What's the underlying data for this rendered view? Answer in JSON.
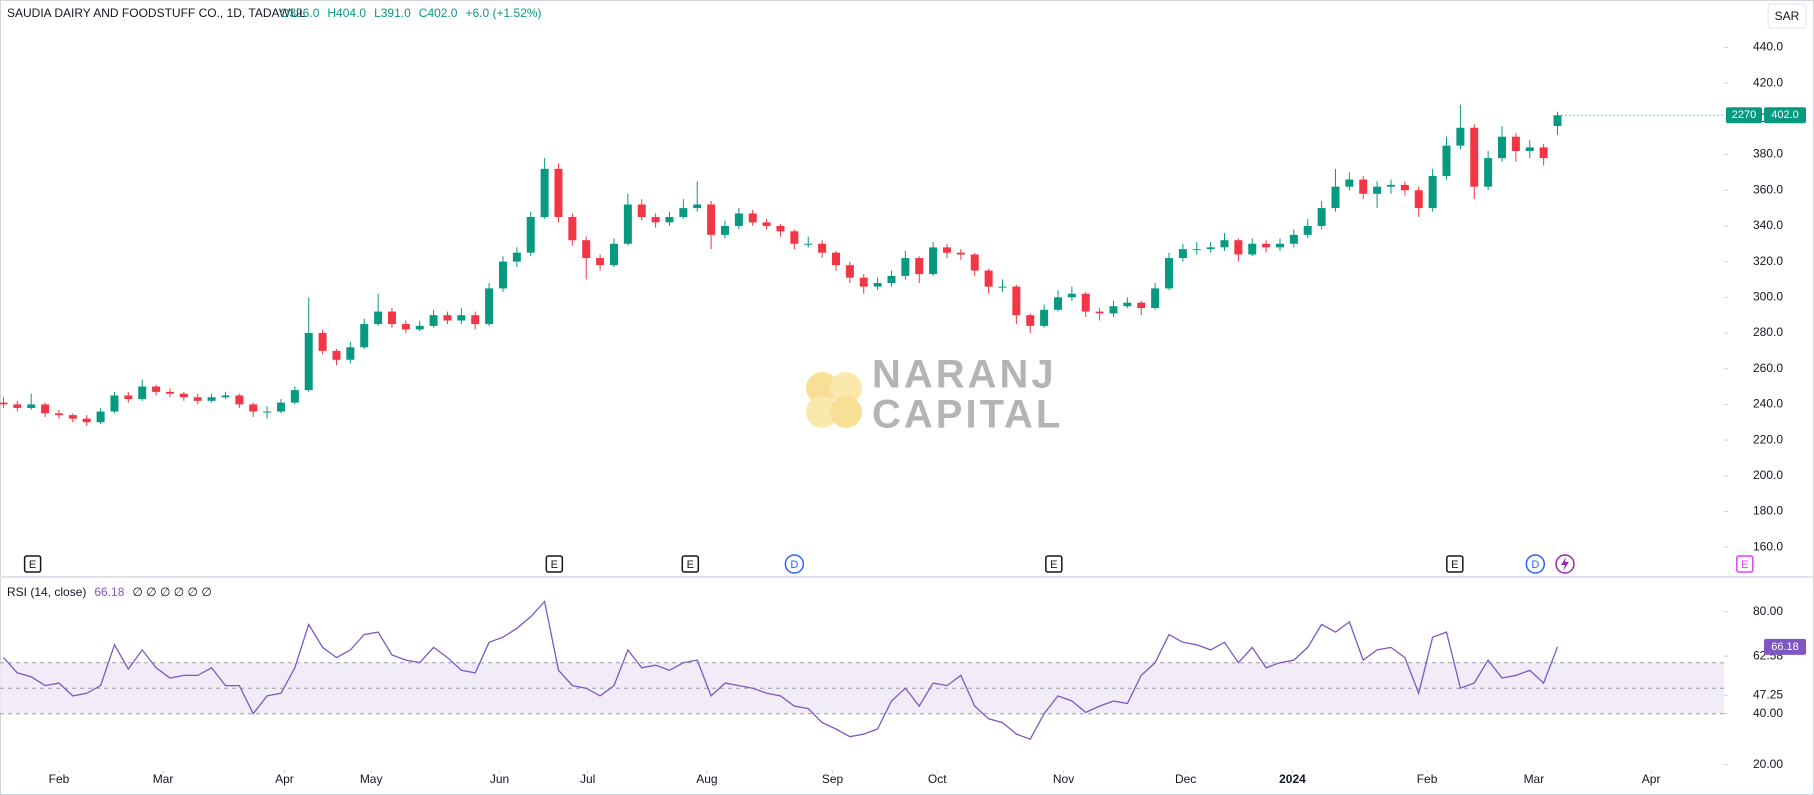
{
  "chart_data": [
    {
      "type": "candlestick",
      "title": "SAUDIA DAIRY AND FOODSTUFF CO., 1D, TADAWUL",
      "legend_values": [
        "O396.0",
        "H404.0",
        "L391.0",
        "C402.0",
        "+6.0 (+1.52%)"
      ],
      "y_unit": "SAR",
      "last_price_label": "402.0",
      "price_badge_extra": "2270",
      "up_color": "#089981",
      "down_color": "#f23645",
      "x": [
        0,
        1,
        2,
        3,
        4,
        5,
        6,
        7,
        8,
        9,
        10,
        11,
        12,
        13,
        14,
        15,
        16,
        17,
        18,
        19,
        20,
        21,
        22,
        23,
        24,
        25,
        26,
        27,
        28,
        29,
        30,
        31,
        32,
        33,
        34,
        35,
        36,
        37,
        38,
        39,
        40,
        41,
        42,
        43,
        44,
        45,
        46,
        47,
        48,
        49,
        50,
        51,
        52,
        53,
        54,
        55,
        56,
        57,
        58,
        59,
        60,
        61,
        62,
        63,
        64,
        65,
        66,
        67,
        68,
        69,
        70,
        71,
        72,
        73,
        74,
        75,
        76,
        77,
        78,
        79,
        80,
        81,
        82,
        83,
        84,
        85,
        86,
        87,
        88,
        89,
        90,
        91,
        92,
        93,
        94,
        95,
        96,
        97,
        98,
        99,
        100,
        101,
        102,
        103,
        104,
        105,
        106,
        107,
        108,
        109,
        110,
        111,
        112
      ],
      "ohlc": [
        [
          241,
          244,
          238,
          240
        ],
        [
          240,
          242,
          236,
          238
        ],
        [
          238,
          246,
          237,
          240
        ],
        [
          240,
          241,
          233,
          235
        ],
        [
          235,
          237,
          232,
          234
        ],
        [
          234,
          235,
          230,
          232
        ],
        [
          232,
          234,
          228,
          230
        ],
        [
          230,
          238,
          229,
          236
        ],
        [
          236,
          247,
          235,
          245
        ],
        [
          245,
          247,
          241,
          243
        ],
        [
          243,
          254,
          242,
          250
        ],
        [
          250,
          251,
          245,
          247
        ],
        [
          247,
          249,
          244,
          246
        ],
        [
          246,
          247,
          242,
          244
        ],
        [
          244,
          246,
          240,
          242
        ],
        [
          242,
          246,
          241,
          244
        ],
        [
          244,
          247,
          243,
          245
        ],
        [
          245,
          246,
          238,
          240
        ],
        [
          240,
          241,
          233,
          236
        ],
        [
          236,
          239,
          232,
          236
        ],
        [
          236,
          243,
          235,
          241
        ],
        [
          241,
          250,
          240,
          248
        ],
        [
          248,
          300,
          247,
          280
        ],
        [
          280,
          282,
          268,
          270
        ],
        [
          270,
          271,
          262,
          265
        ],
        [
          265,
          275,
          263,
          272
        ],
        [
          272,
          288,
          271,
          285
        ],
        [
          285,
          302,
          284,
          292
        ],
        [
          292,
          294,
          283,
          285
        ],
        [
          285,
          287,
          280,
          282
        ],
        [
          282,
          287,
          281,
          284
        ],
        [
          284,
          293,
          283,
          290
        ],
        [
          290,
          292,
          285,
          287
        ],
        [
          287,
          294,
          285,
          290
        ],
        [
          290,
          292,
          282,
          285
        ],
        [
          285,
          308,
          284,
          305
        ],
        [
          305,
          323,
          303,
          320
        ],
        [
          320,
          328,
          317,
          325
        ],
        [
          325,
          348,
          323,
          345
        ],
        [
          345,
          378,
          344,
          372
        ],
        [
          372,
          375,
          342,
          345
        ],
        [
          345,
          347,
          329,
          332
        ],
        [
          332,
          334,
          310,
          322
        ],
        [
          322,
          324,
          315,
          318
        ],
        [
          318,
          333,
          317,
          330
        ],
        [
          330,
          358,
          329,
          352
        ],
        [
          352,
          355,
          343,
          345
        ],
        [
          345,
          347,
          339,
          342
        ],
        [
          342,
          348,
          340,
          345
        ],
        [
          345,
          355,
          344,
          350
        ],
        [
          350,
          365,
          348,
          352
        ],
        [
          352,
          354,
          327,
          335
        ],
        [
          335,
          343,
          333,
          340
        ],
        [
          340,
          350,
          338,
          347
        ],
        [
          347,
          349,
          340,
          342
        ],
        [
          342,
          344,
          338,
          340
        ],
        [
          340,
          341,
          334,
          337
        ],
        [
          337,
          338,
          327,
          330
        ],
        [
          330,
          334,
          328,
          330
        ],
        [
          330,
          332,
          322,
          325
        ],
        [
          325,
          326,
          315,
          318
        ],
        [
          318,
          320,
          308,
          311
        ],
        [
          311,
          313,
          302,
          306
        ],
        [
          306,
          311,
          304,
          308
        ],
        [
          308,
          315,
          306,
          312
        ],
        [
          312,
          326,
          310,
          322
        ],
        [
          322,
          323,
          308,
          313
        ],
        [
          313,
          331,
          312,
          328
        ],
        [
          328,
          330,
          322,
          325
        ],
        [
          325,
          327,
          321,
          324
        ],
        [
          324,
          325,
          312,
          315
        ],
        [
          315,
          316,
          302,
          306
        ],
        [
          306,
          310,
          303,
          306
        ],
        [
          306,
          307,
          285,
          290
        ],
        [
          290,
          291,
          280,
          284
        ],
        [
          284,
          296,
          283,
          293
        ],
        [
          293,
          304,
          292,
          300
        ],
        [
          300,
          306,
          298,
          302
        ],
        [
          302,
          303,
          289,
          292
        ],
        [
          292,
          294,
          287,
          291
        ],
        [
          291,
          298,
          289,
          295
        ],
        [
          295,
          300,
          294,
          297
        ],
        [
          297,
          298,
          290,
          294
        ],
        [
          294,
          308,
          293,
          305
        ],
        [
          305,
          325,
          304,
          322
        ],
        [
          322,
          330,
          320,
          327
        ],
        [
          327,
          331,
          324,
          327
        ],
        [
          327,
          331,
          325,
          328
        ],
        [
          328,
          336,
          326,
          332
        ],
        [
          332,
          333,
          320,
          324
        ],
        [
          324,
          333,
          323,
          330
        ],
        [
          330,
          332,
          325,
          328
        ],
        [
          328,
          333,
          326,
          330
        ],
        [
          330,
          338,
          328,
          335
        ],
        [
          335,
          344,
          333,
          340
        ],
        [
          340,
          354,
          338,
          350
        ],
        [
          350,
          372,
          348,
          362
        ],
        [
          362,
          370,
          360,
          366
        ],
        [
          366,
          368,
          355,
          358
        ],
        [
          358,
          365,
          350,
          362
        ],
        [
          362,
          366,
          358,
          363
        ],
        [
          363,
          365,
          357,
          360
        ],
        [
          360,
          362,
          345,
          350
        ],
        [
          350,
          372,
          348,
          368
        ],
        [
          368,
          390,
          366,
          385
        ],
        [
          385,
          408,
          383,
          395
        ],
        [
          395,
          397,
          355,
          362
        ],
        [
          362,
          382,
          360,
          378
        ],
        [
          378,
          396,
          376,
          390
        ],
        [
          390,
          392,
          376,
          382
        ],
        [
          382,
          388,
          378,
          384
        ],
        [
          384,
          386,
          374,
          378
        ],
        [
          396,
          404,
          391,
          402
        ]
      ],
      "xlim": [
        -0.25,
        124
      ],
      "ylim": [
        144.4,
        466.6
      ],
      "yticks": [
        {
          "value": 160,
          "label": "160.0"
        },
        {
          "value": 180,
          "label": "180.0"
        },
        {
          "value": 200,
          "label": "200.0"
        },
        {
          "value": 220,
          "label": "220.0"
        },
        {
          "value": 240,
          "label": "240.0"
        },
        {
          "value": 260,
          "label": "260.0"
        },
        {
          "value": 280,
          "label": "280.0"
        },
        {
          "value": 300,
          "label": "300.0"
        },
        {
          "value": 320,
          "label": "320.0"
        },
        {
          "value": 340,
          "label": "340.0"
        },
        {
          "value": 360,
          "label": "360.0"
        },
        {
          "value": 380,
          "label": "380.0"
        },
        {
          "value": 400,
          "label": "400.0"
        },
        {
          "value": 420,
          "label": "420.0"
        },
        {
          "value": 440,
          "label": "440.0"
        }
      ],
      "events": [
        {
          "label": "E",
          "x": 2.1,
          "color": "#131722"
        },
        {
          "label": "E",
          "x": 39.7,
          "color": "#131722"
        },
        {
          "label": "E",
          "x": 49.5,
          "color": "#131722"
        },
        {
          "label": "D",
          "x": 57,
          "color": "#2962ff"
        },
        {
          "label": "E",
          "x": 75.7,
          "color": "#131722"
        },
        {
          "label": "E",
          "x": 104.6,
          "color": "#131722"
        },
        {
          "label": "D",
          "x": 110.4,
          "color": "#2962ff"
        },
        {
          "label": "E",
          "x": 125.5,
          "color": "#e040fb"
        }
      ]
    },
    {
      "type": "line",
      "title": "RSI (14, close)",
      "status": "∅ ∅ ∅ ∅ ∅ ∅",
      "color": "#7e57c2",
      "x": [
        0,
        1,
        2,
        3,
        4,
        5,
        6,
        7,
        8,
        9,
        10,
        11,
        12,
        13,
        14,
        15,
        16,
        17,
        18,
        19,
        20,
        21,
        22,
        23,
        24,
        25,
        26,
        27,
        28,
        29,
        30,
        31,
        32,
        33,
        34,
        35,
        36,
        37,
        38,
        39,
        40,
        41,
        42,
        43,
        44,
        45,
        46,
        47,
        48,
        49,
        50,
        51,
        52,
        53,
        54,
        55,
        56,
        57,
        58,
        59,
        60,
        61,
        62,
        63,
        64,
        65,
        66,
        67,
        68,
        69,
        70,
        71,
        72,
        73,
        74,
        75,
        76,
        77,
        78,
        79,
        80,
        81,
        82,
        83,
        84,
        85,
        86,
        87,
        88,
        89,
        90,
        91,
        92,
        93,
        94,
        95,
        96,
        97,
        98,
        99,
        100,
        101,
        102,
        103,
        104,
        105,
        106,
        107,
        108,
        109,
        110,
        111,
        112
      ],
      "values": [
        62,
        56,
        54.5,
        51,
        52,
        47,
        48,
        51,
        67,
        57.5,
        65,
        58,
        54,
        55,
        55,
        58,
        51,
        51,
        40,
        47,
        48,
        58,
        75,
        66,
        62,
        65,
        71,
        72,
        63,
        61,
        60,
        66,
        62,
        57,
        56,
        68,
        70,
        73.5,
        78,
        84,
        57,
        51,
        50,
        47,
        51,
        65,
        58,
        59,
        57,
        60,
        61,
        47,
        52,
        51,
        50,
        48,
        47,
        43,
        42,
        36.5,
        34,
        31,
        32,
        34,
        45,
        50,
        43,
        52,
        51,
        55,
        43,
        38,
        36.5,
        32,
        30,
        40,
        47,
        45,
        40.5,
        43,
        45,
        44,
        55,
        60,
        71,
        68,
        67,
        65,
        68,
        60,
        66,
        58,
        60,
        61,
        66,
        75,
        72,
        76,
        61,
        65,
        66,
        62,
        48,
        70,
        72,
        50,
        52,
        61,
        54,
        55,
        57,
        52,
        66.18
      ],
      "levels": [
        60,
        50,
        40
      ],
      "band_color": "#ede7f6",
      "xlim": [
        -0.25,
        124
      ],
      "ylim": [
        19.5,
        93.2
      ],
      "yticks": [
        {
          "value": 80,
          "label": "80.00"
        },
        {
          "value": 62.58,
          "label": "62.58"
        },
        {
          "value": 47.25,
          "label": "47.25"
        },
        {
          "value": 40,
          "label": "40.00"
        },
        {
          "value": 20,
          "label": "20.00"
        }
      ],
      "xticks": [
        {
          "value": 4,
          "label": "Feb"
        },
        {
          "value": 11.5,
          "label": "Mar"
        },
        {
          "value": 20.25,
          "label": "Apr"
        },
        {
          "value": 26.5,
          "label": "May"
        },
        {
          "value": 35.75,
          "label": "Jun"
        },
        {
          "value": 42.1,
          "label": "Jul"
        },
        {
          "value": 50.7,
          "label": "Aug"
        },
        {
          "value": 59.75,
          "label": "Sep"
        },
        {
          "value": 67.3,
          "label": "Oct"
        },
        {
          "value": 76.4,
          "label": "Nov"
        },
        {
          "value": 85.2,
          "label": "Dec"
        },
        {
          "value": 92.9,
          "label": "2024"
        },
        {
          "value": 102.6,
          "label": "Feb"
        },
        {
          "value": 110.3,
          "label": "Mar"
        },
        {
          "value": 118.75,
          "label": "Apr"
        }
      ]
    }
  ],
  "watermark": [
    "NARANJ",
    "CAPITAL"
  ]
}
